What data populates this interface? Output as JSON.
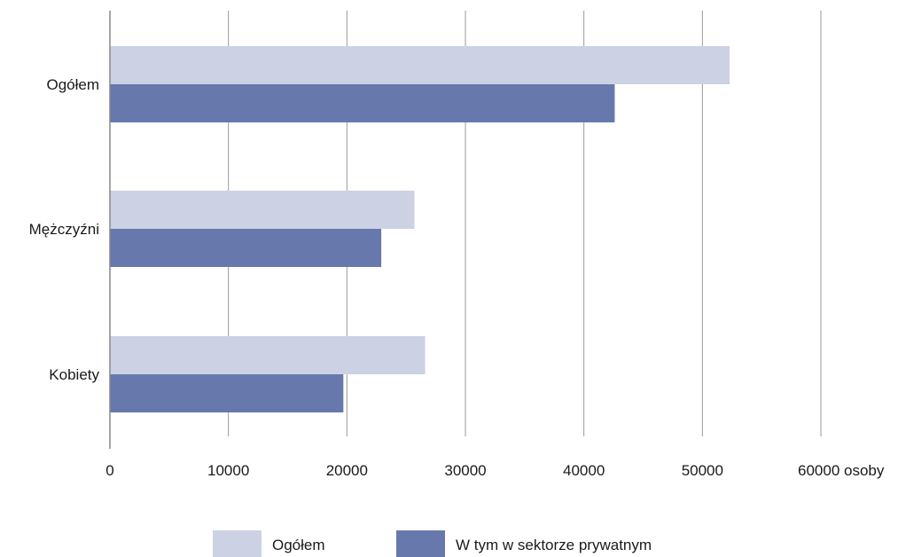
{
  "chart_data": {
    "type": "bar",
    "orientation": "horizontal",
    "categories": [
      "Ogółem",
      "Mężczyźni",
      "Kobiety"
    ],
    "series": [
      {
        "name": "Ogółem",
        "values": [
          52300,
          25700,
          26600
        ],
        "color": "#ccd2e4"
      },
      {
        "name": "W tym w sektorze prywatnym",
        "values": [
          42600,
          22900,
          19700
        ],
        "color": "#6778ad"
      }
    ],
    "xlim": [
      0,
      60000
    ],
    "xticks": [
      0,
      10000,
      20000,
      30000,
      40000,
      50000,
      60000
    ],
    "xtick_labels": [
      "0",
      "10000",
      "20000",
      "30000",
      "40000",
      "50000",
      "60000 osoby"
    ],
    "grid": true,
    "legend_position": "bottom-center"
  }
}
